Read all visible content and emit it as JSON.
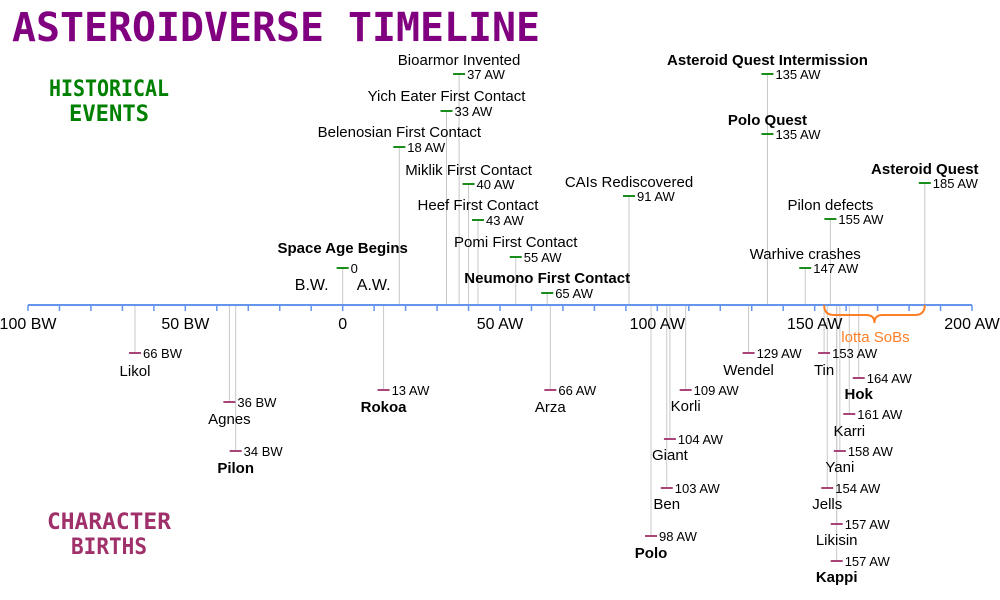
{
  "title": "ASTEROIDVERSE TIMELINE",
  "historical_label": [
    "HISTORICAL",
    "EVENTS"
  ],
  "births_label": [
    "CHARACTER",
    "BIRTHS"
  ],
  "colors": {
    "title": "#800080",
    "events": "#008000",
    "births": "#a0306a",
    "axis": "#6495ed",
    "guide": "#c8c8c8",
    "brace": "#ff7f27"
  },
  "axis": {
    "range": [
      -100,
      200
    ],
    "minor_tick_step": 10,
    "ticks": [
      {
        "year": -100,
        "label": "100 BW"
      },
      {
        "year": -50,
        "label": "50 BW"
      },
      {
        "year": 0,
        "label": "0"
      },
      {
        "year": 50,
        "label": "50 AW"
      },
      {
        "year": 100,
        "label": "100 AW"
      },
      {
        "year": 150,
        "label": "150 AW"
      },
      {
        "year": 200,
        "label": "200 AW"
      }
    ],
    "bw_label": "B.W.",
    "aw_label": "A.W."
  },
  "events": [
    {
      "name": "Bioarmor Invented",
      "year": 37,
      "value": "37 AW",
      "bold": false
    },
    {
      "name": "Yich Eater First Contact",
      "year": 33,
      "value": "33 AW",
      "bold": false
    },
    {
      "name": "Belenosian First Contact",
      "year": 18,
      "value": "18 AW",
      "bold": false
    },
    {
      "name": "Miklik First Contact",
      "year": 40,
      "value": "40 AW",
      "bold": false
    },
    {
      "name": "Heef First Contact",
      "year": 43,
      "value": "43 AW",
      "bold": false
    },
    {
      "name": "Pomi First Contact",
      "year": 55,
      "value": "55 AW",
      "bold": false
    },
    {
      "name": "Neumono First Contact",
      "year": 65,
      "value": "65 AW",
      "bold": true
    },
    {
      "name": "Space Age Begins",
      "year": 0,
      "value": "0",
      "bold": true
    },
    {
      "name": "CAIs Rediscovered",
      "year": 91,
      "value": "91 AW",
      "bold": false
    },
    {
      "name": "Asteroid Quest Intermission",
      "year": 135,
      "value": "135 AW",
      "bold": true
    },
    {
      "name": "Polo Quest",
      "year": 135,
      "value": "135 AW",
      "bold": true
    },
    {
      "name": "Asteroid Quest",
      "year": 185,
      "value": "185 AW",
      "bold": true
    },
    {
      "name": "Pilon defects",
      "year": 155,
      "value": "155 AW",
      "bold": false
    },
    {
      "name": "Warhive crashes",
      "year": 147,
      "value": "147 AW",
      "bold": false
    }
  ],
  "births": [
    {
      "name": "Likol",
      "year": -66,
      "value": "66 BW",
      "bold": false
    },
    {
      "name": "Agnes",
      "year": -36,
      "value": "36 BW",
      "bold": false
    },
    {
      "name": "Pilon",
      "year": -34,
      "value": "34 BW",
      "bold": true
    },
    {
      "name": "Rokoa",
      "year": 13,
      "value": "13 AW",
      "bold": true
    },
    {
      "name": "Arza",
      "year": 66,
      "value": "66 AW",
      "bold": false
    },
    {
      "name": "Polo",
      "year": 98,
      "value": "98 AW",
      "bold": true
    },
    {
      "name": "Korli",
      "year": 109,
      "value": "109 AW",
      "bold": false
    },
    {
      "name": "Giant",
      "year": 104,
      "value": "104 AW",
      "bold": false
    },
    {
      "name": "Ben",
      "year": 103,
      "value": "103 AW",
      "bold": false
    },
    {
      "name": "Wendel",
      "year": 129,
      "value": "129 AW",
      "bold": false
    },
    {
      "name": "Tin",
      "year": 153,
      "value": "153 AW",
      "bold": false
    },
    {
      "name": "Hok",
      "year": 164,
      "value": "164 AW",
      "bold": true
    },
    {
      "name": "Karri",
      "year": 161,
      "value": "161 AW",
      "bold": false
    },
    {
      "name": "Yani",
      "year": 158,
      "value": "158 AW",
      "bold": false
    },
    {
      "name": "Jells",
      "year": 154,
      "value": "154 AW",
      "bold": false
    },
    {
      "name": "Likisin",
      "year": 157,
      "value": "157 AW",
      "bold": false
    },
    {
      "name": "Kappi",
      "year": 157,
      "value": "157 AW",
      "bold": true
    }
  ],
  "brace": {
    "label": "lotta SoBs",
    "from": 153,
    "to": 185
  }
}
